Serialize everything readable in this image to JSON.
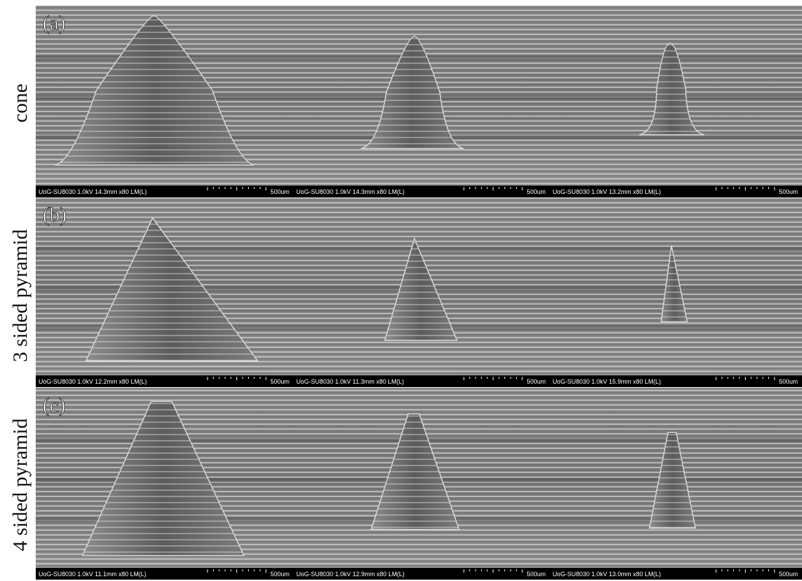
{
  "rows": [
    {
      "panel": "(a)",
      "label": "cone",
      "images": [
        {
          "info": "UoG-SU8030 1.0kV 14.3mm x80 LM(L)",
          "scale": "500um"
        },
        {
          "info": "UoG-SU8030 1.0kV 14.3mm x80 LM(L)",
          "scale": "500um"
        },
        {
          "info": "UoG-SU8030 1.0kV 13.2mm x80 LM(L)",
          "scale": "500um"
        }
      ]
    },
    {
      "panel": "(b)",
      "label": "3 sided pyramid",
      "images": [
        {
          "info": "UoG-SU8030 1.0kV 12.2mm x80 LM(L)",
          "scale": "500um"
        },
        {
          "info": "UoG-SU8030 1.0kV 11.3mm x80 LM(L)",
          "scale": "500um"
        },
        {
          "info": "UoG-SU8030 1.0kV 15.9mm x80 LM(L)",
          "scale": "500um"
        }
      ]
    },
    {
      "panel": "(c)",
      "label": "4 sided pyramid",
      "images": [
        {
          "info": "UoG-SU8030 1.0kV 11.1mm x80 LM(L)",
          "scale": "500um"
        },
        {
          "info": "UoG-SU8030 1.0kV 12.9mm x80 LM(L)",
          "scale": "500um"
        },
        {
          "info": "UoG-SU8030 1.0kV 13.0mm x80 LM(L)",
          "scale": "500um"
        }
      ]
    }
  ]
}
